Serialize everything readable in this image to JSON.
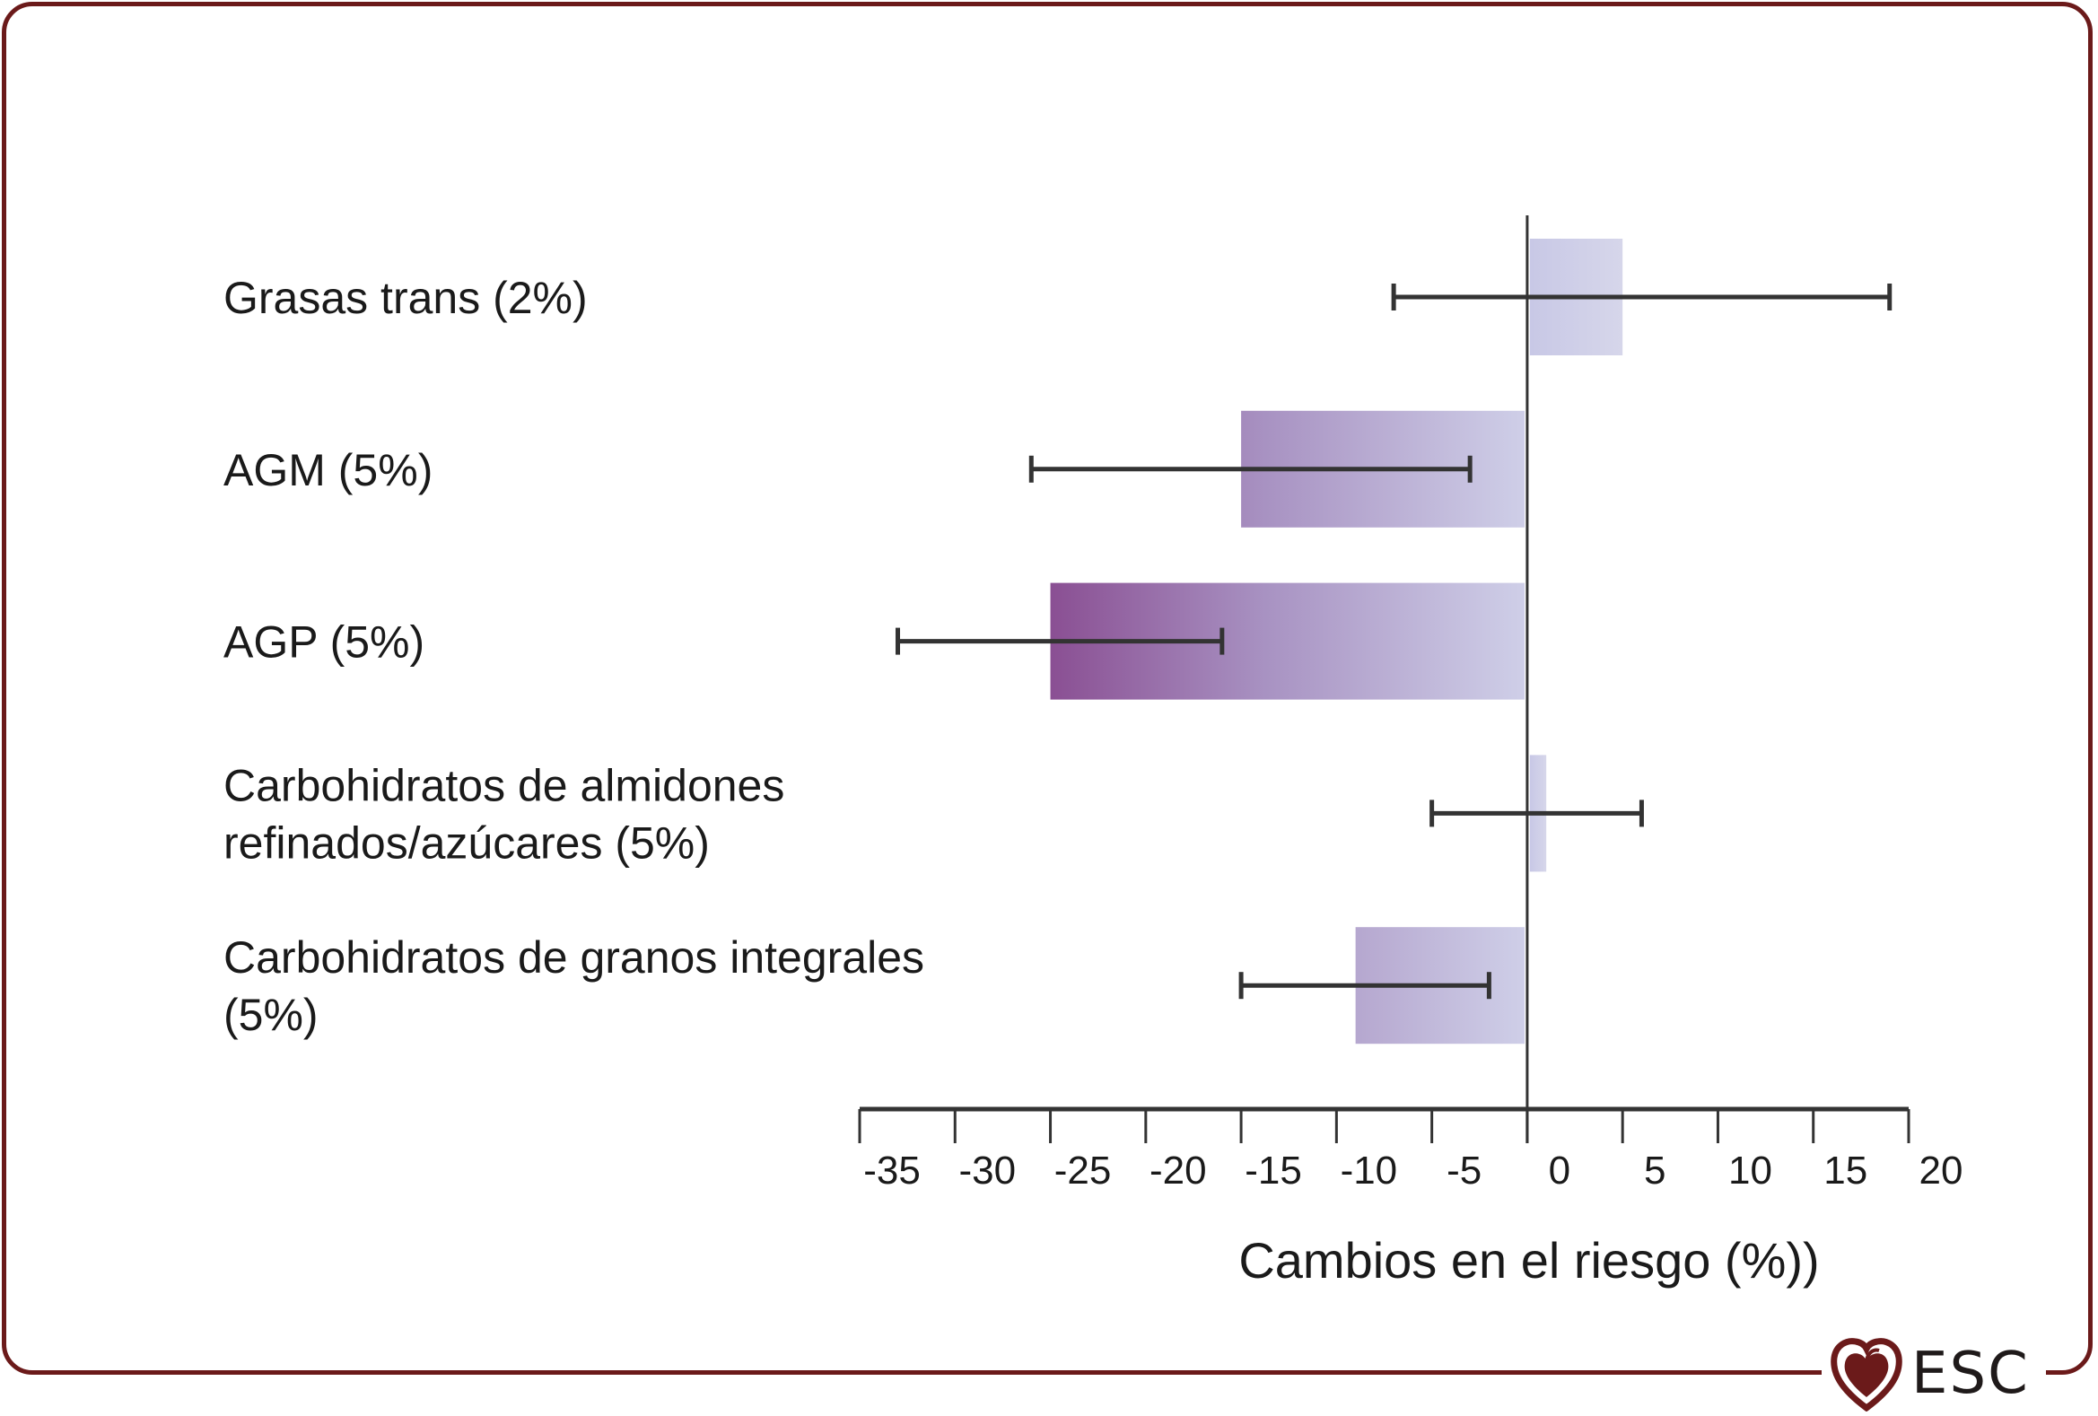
{
  "chart_data": {
    "type": "bar",
    "orientation": "horizontal",
    "title": "",
    "xlabel": "Cambios en el riesgo (%))",
    "ylabel": "",
    "xlim": [
      -35,
      20
    ],
    "xticks": [
      -35,
      -30,
      -25,
      -20,
      -15,
      -10,
      -5,
      0,
      5,
      10,
      15,
      20
    ],
    "xtick_labels": [
      "-35",
      "-30",
      "-25",
      "-20",
      "-15",
      "-10",
      "-5",
      "0",
      "5",
      "10",
      "15",
      "20"
    ],
    "grid": false,
    "legend": null,
    "categories": [
      [
        "Grasas trans (2%)"
      ],
      [
        "AGM (5%)"
      ],
      [
        "AGP (5%)"
      ],
      [
        "Carbohidratos de almidones",
        "refinados/azúcares (5%)"
      ],
      [
        "Carbohidratos de granos integrales",
        "(5%)"
      ]
    ],
    "values": [
      5,
      -15,
      -25,
      1,
      -9
    ],
    "error_low": [
      -7,
      -26,
      -33,
      -5,
      -15
    ],
    "error_high": [
      19,
      -3,
      -16,
      6,
      -2
    ],
    "colors": {
      "bar_dark": "#8a4f93",
      "bar_mid": "#a892c2",
      "bar_light": "#cfcfe8",
      "axis": "#333333",
      "frame": "#6b1a1a"
    }
  },
  "logo": {
    "icon": "heart-icon",
    "text": "ESC"
  }
}
